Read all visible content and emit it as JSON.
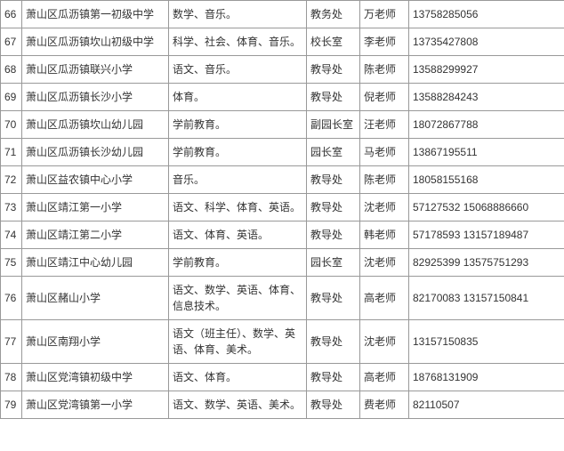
{
  "rows": [
    {
      "num": "66",
      "school": "萧山区瓜沥镇第一初级中学",
      "subject": "数学、音乐。",
      "dept": "教务处",
      "teacher": "万老师",
      "phone": "13758285056"
    },
    {
      "num": "67",
      "school": "萧山区瓜沥镇坎山初级中学",
      "subject": "科学、社会、体育、音乐。",
      "dept": "校长室",
      "teacher": "李老师",
      "phone": "13735427808"
    },
    {
      "num": "68",
      "school": "萧山区瓜沥镇联兴小学",
      "subject": "语文、音乐。",
      "dept": "教导处",
      "teacher": "陈老师",
      "phone": "13588299927"
    },
    {
      "num": "69",
      "school": "萧山区瓜沥镇长沙小学",
      "subject": "体育。",
      "dept": "教导处",
      "teacher": "倪老师",
      "phone": "13588284243"
    },
    {
      "num": "70",
      "school": "萧山区瓜沥镇坎山幼儿园",
      "subject": "学前教育。",
      "dept": "副园长室",
      "teacher": "汪老师",
      "phone": "18072867788"
    },
    {
      "num": "71",
      "school": "萧山区瓜沥镇长沙幼儿园",
      "subject": "学前教育。",
      "dept": "园长室",
      "teacher": "马老师",
      "phone": "13867195511"
    },
    {
      "num": "72",
      "school": "萧山区益农镇中心小学",
      "subject": "音乐。",
      "dept": "教导处",
      "teacher": "陈老师",
      "phone": "18058155168"
    },
    {
      "num": "73",
      "school": "萧山区靖江第一小学",
      "subject": "语文、科学、体育、英语。",
      "dept": "教导处",
      "teacher": "沈老师",
      "phone": "57127532 15068886660"
    },
    {
      "num": "74",
      "school": "萧山区靖江第二小学",
      "subject": "语文、体育、英语。",
      "dept": "教导处",
      "teacher": "韩老师",
      "phone": "57178593 13157189487"
    },
    {
      "num": "75",
      "school": "萧山区靖江中心幼儿园",
      "subject": "学前教育。",
      "dept": "园长室",
      "teacher": "沈老师",
      "phone": "82925399 13575751293"
    },
    {
      "num": "76",
      "school": "萧山区赭山小学",
      "subject": "语文、数学、英语、体育、信息技术。",
      "dept": "教导处",
      "teacher": "高老师",
      "phone": "82170083 13157150841"
    },
    {
      "num": "77",
      "school": "萧山区南翔小学",
      "subject": "语文（班主任）、数学、英语、体育、美术。",
      "dept": "教导处",
      "teacher": "沈老师",
      "phone": "13157150835"
    },
    {
      "num": "78",
      "school": "萧山区党湾镇初级中学",
      "subject": "语文、体育。",
      "dept": "教导处",
      "teacher": "高老师",
      "phone": "18768131909"
    },
    {
      "num": "79",
      "school": "萧山区党湾镇第一小学",
      "subject": "语文、数学、英语、美术。",
      "dept": "教导处",
      "teacher": "费老师",
      "phone": "82110507"
    }
  ]
}
